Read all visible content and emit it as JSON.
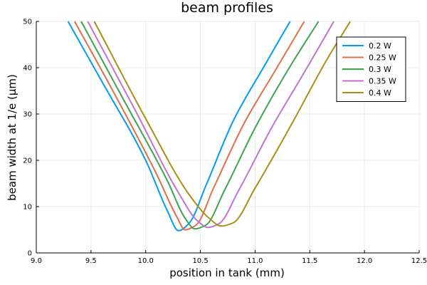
{
  "chart_data": {
    "type": "line",
    "title": "beam profiles",
    "xlabel": "position in tank (mm)",
    "ylabel": "beam width at 1/e (μm)",
    "xlim": [
      9.0,
      12.5
    ],
    "ylim": [
      0,
      50
    ],
    "xticks": [
      "9.0",
      "9.5",
      "10.0",
      "10.5",
      "11.0",
      "11.5",
      "12.0",
      "12.5"
    ],
    "yticks": [
      "0",
      "10",
      "20",
      "30",
      "40",
      "50"
    ],
    "grid": true,
    "legend_position": "top-right",
    "series": [
      {
        "name": "0.2 W",
        "color": "#009AF9",
        "x": [
          9.29,
          9.6,
          10.0,
          10.2,
          10.3,
          10.4,
          10.55,
          10.8,
          11.1,
          11.32
        ],
        "y": [
          50,
          37,
          20,
          9,
          4.8,
          6.5,
          14.5,
          28.5,
          41,
          50
        ]
      },
      {
        "name": "0.25 W",
        "color": "#E26F46",
        "x": [
          9.35,
          9.7,
          10.1,
          10.28,
          10.36,
          10.46,
          10.62,
          10.9,
          11.2,
          11.45
        ],
        "y": [
          50,
          35,
          17,
          8,
          5.0,
          6.0,
          14.0,
          28.0,
          40,
          50
        ]
      },
      {
        "name": "0.3 W",
        "color": "#3DA44D",
        "x": [
          9.41,
          9.8,
          10.2,
          10.36,
          10.45,
          10.55,
          10.72,
          11.0,
          11.3,
          11.58
        ],
        "y": [
          50,
          33,
          15.5,
          7.5,
          5.2,
          6.0,
          13.5,
          27.0,
          39.5,
          50
        ]
      },
      {
        "name": "0.35 W",
        "color": "#C271D2",
        "x": [
          9.47,
          9.9,
          10.3,
          10.47,
          10.57,
          10.67,
          10.85,
          11.15,
          11.45,
          11.72
        ],
        "y": [
          50,
          31,
          13,
          7,
          5.5,
          6.3,
          13.5,
          27.0,
          39.0,
          50
        ]
      },
      {
        "name": "0.4 W",
        "color": "#AC8D18",
        "x": [
          9.53,
          10.0,
          10.4,
          10.58,
          10.69,
          10.8,
          11.0,
          11.35,
          11.65,
          11.87
        ],
        "y": [
          50,
          29,
          12.5,
          7.5,
          5.8,
          6.5,
          14.0,
          28.5,
          41.5,
          50
        ]
      }
    ]
  }
}
